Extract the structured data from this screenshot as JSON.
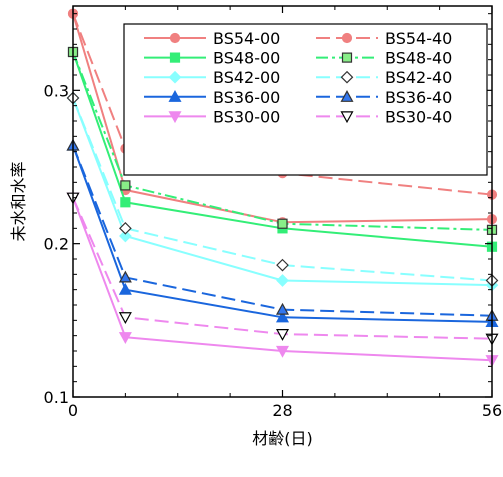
{
  "chart_data": {
    "type": "line",
    "xlabel": "材齢(日)",
    "ylabel": "未水和水率",
    "xlim": [
      0,
      56
    ],
    "ylim": [
      0.1,
      0.355
    ],
    "x_ticks": [
      0,
      28,
      56
    ],
    "x_tick_labels": [
      "0",
      "28",
      "56"
    ],
    "y_ticks": [
      0.1,
      0.2,
      0.3
    ],
    "y_tick_labels": [
      "0.1",
      "0.2",
      "0.3"
    ],
    "legend_position": "top-right",
    "grid": false,
    "series": [
      {
        "name": "BS54-00",
        "color": "#f08080",
        "dash": "solid",
        "marker": "circle",
        "fill": "#f08080",
        "x": [
          0,
          7,
          28,
          56
        ],
        "y": [
          0.35,
          0.235,
          0.214,
          0.216
        ]
      },
      {
        "name": "BS54-40",
        "color": "#f08080",
        "dash": "dashed",
        "marker": "circle",
        "fill": "#f08080",
        "x": [
          0,
          7,
          28,
          56
        ],
        "y": [
          0.35,
          0.262,
          0.246,
          0.232
        ]
      },
      {
        "name": "BS48-00",
        "color": "#33ee77",
        "dash": "solid",
        "marker": "square",
        "fill": "#33ee77",
        "x": [
          0,
          7,
          28,
          56
        ],
        "y": [
          0.325,
          0.227,
          0.21,
          0.198
        ]
      },
      {
        "name": "BS48-40",
        "color": "#33ee77",
        "dash": "dashdot",
        "marker": "square",
        "fill": "#88ee88",
        "x": [
          0,
          7,
          28,
          56
        ],
        "y": [
          0.325,
          0.238,
          0.213,
          0.209
        ]
      },
      {
        "name": "BS42-00",
        "color": "#88ffff",
        "dash": "solid",
        "marker": "diamond",
        "fill": "#88ffff",
        "x": [
          0,
          7,
          28,
          56
        ],
        "y": [
          0.295,
          0.205,
          0.176,
          0.173
        ]
      },
      {
        "name": "BS42-40",
        "color": "#88ffff",
        "dash": "dashed",
        "marker": "diamond",
        "fill": "#ffffff",
        "x": [
          0,
          7,
          28,
          56
        ],
        "y": [
          0.295,
          0.21,
          0.186,
          0.176
        ]
      },
      {
        "name": "BS36-00",
        "color": "#1a66dd",
        "dash": "solid",
        "marker": "triangle-up",
        "fill": "#1a66dd",
        "x": [
          0,
          7,
          28,
          56
        ],
        "y": [
          0.264,
          0.17,
          0.152,
          0.149
        ]
      },
      {
        "name": "BS36-40",
        "color": "#1a66dd",
        "dash": "dashed",
        "marker": "triangle-up",
        "fill": "#3377ee",
        "x": [
          0,
          7,
          28,
          56
        ],
        "y": [
          0.264,
          0.178,
          0.157,
          0.153
        ]
      },
      {
        "name": "BS30-00",
        "color": "#ee88ee",
        "dash": "solid",
        "marker": "triangle-down",
        "fill": "#ee88ee",
        "x": [
          0,
          7,
          28,
          56
        ],
        "y": [
          0.23,
          0.139,
          0.13,
          0.124
        ]
      },
      {
        "name": "BS30-40",
        "color": "#ee88ee",
        "dash": "dashed",
        "marker": "triangle-down",
        "fill": "#ffffff",
        "x": [
          0,
          7,
          28,
          56
        ],
        "y": [
          0.23,
          0.152,
          0.141,
          0.138
        ]
      }
    ]
  }
}
